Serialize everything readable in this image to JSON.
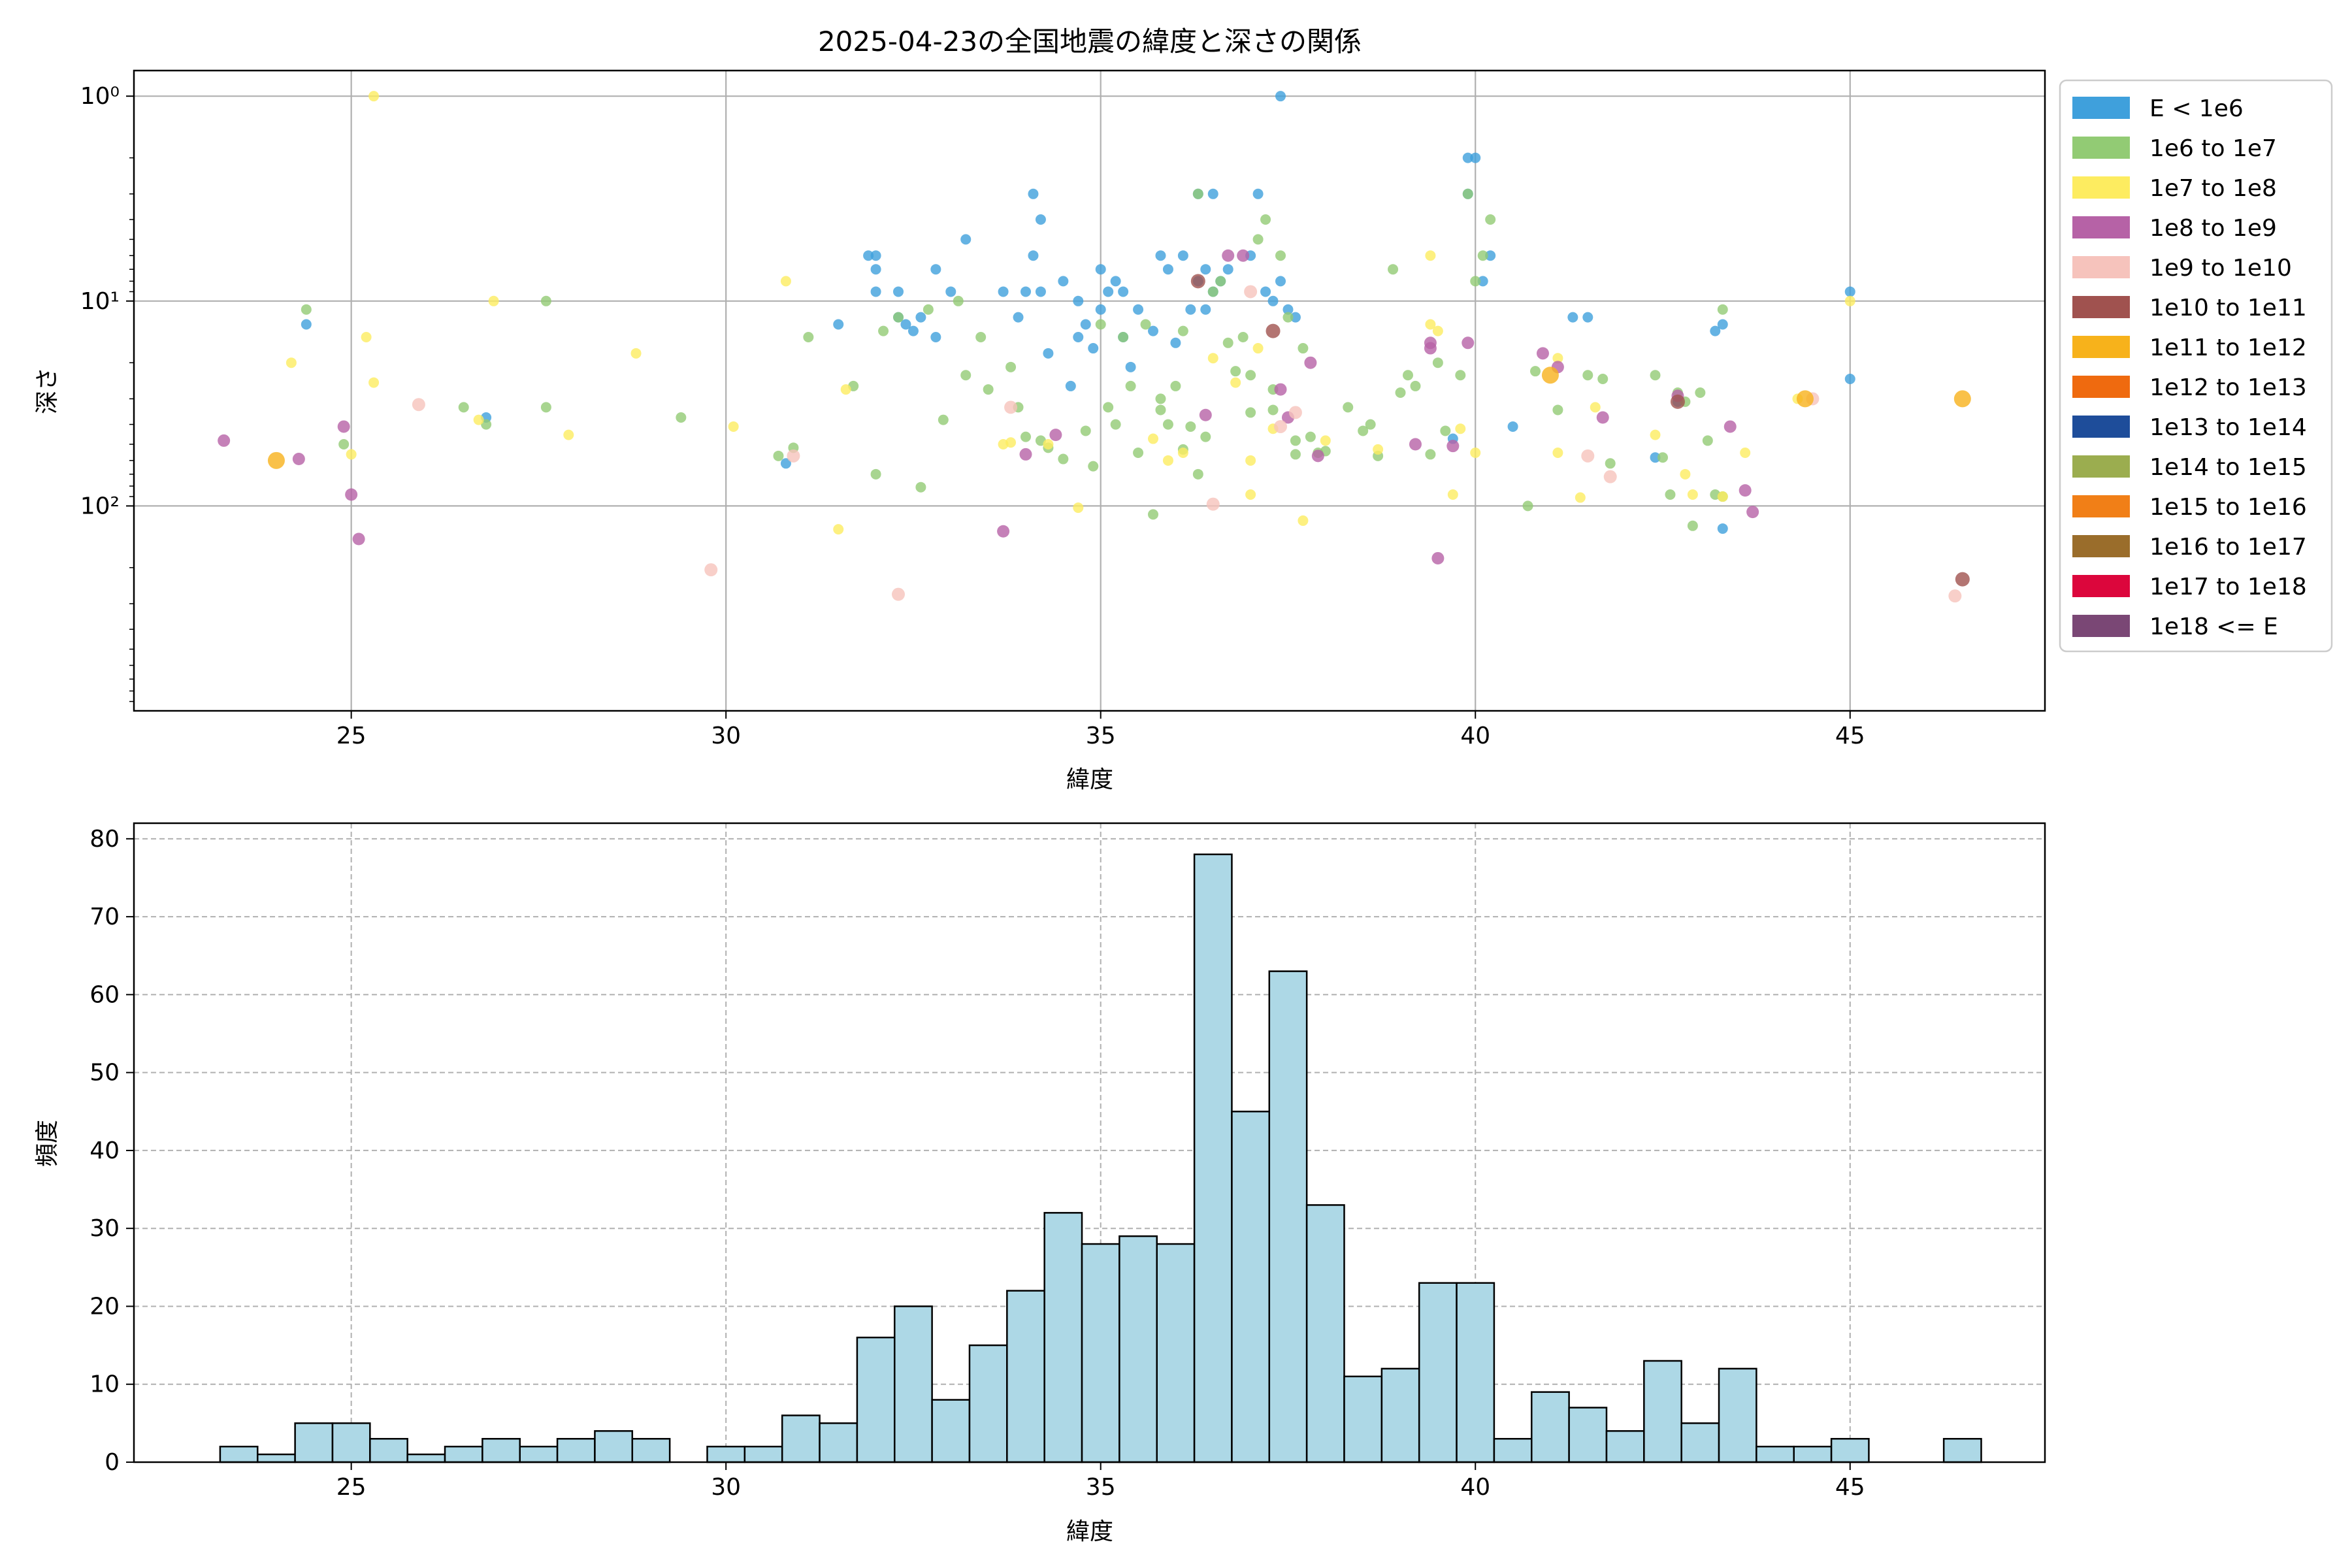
{
  "chart_data": [
    {
      "type": "scatter",
      "title": "2025-04-23の全国地震の緯度と深さの関係",
      "xlabel": "緯度",
      "ylabel": "深さ",
      "xlim": [
        22.1,
        47.6
      ],
      "ylim": [
        1000,
        0.75
      ],
      "y_scale": "log",
      "y_inverted": true,
      "grid": true,
      "x_ticks": [
        25,
        30,
        35,
        40,
        45
      ],
      "y_ticks": [
        {
          "value": 1,
          "label": "10⁰"
        },
        {
          "value": 10,
          "label": "10¹"
        },
        {
          "value": 100,
          "label": "10²"
        }
      ],
      "legend_position": "outside-right",
      "legend": [
        {
          "label": "E < 1e6",
          "color": "#3fa0dc"
        },
        {
          "label": "1e6 to 1e7",
          "color": "#92cb74"
        },
        {
          "label": "1e7 to 1e8",
          "color": "#fdec60"
        },
        {
          "label": "1e8 to 1e9",
          "color": "#b662a6"
        },
        {
          "label": "1e9 to 1e10",
          "color": "#f6c3bc"
        },
        {
          "label": "1e10 to 1e11",
          "color": "#a0524f"
        },
        {
          "label": "1e11 to 1e12",
          "color": "#f7b21b"
        },
        {
          "label": "1e12 to 1e13",
          "color": "#ef6a0f"
        },
        {
          "label": "1e13 to 1e14",
          "color": "#1e4d9a"
        },
        {
          "label": "1e14 to 1e15",
          "color": "#9bad4f"
        },
        {
          "label": "1e15 to 1e16",
          "color": "#f17f17"
        },
        {
          "label": "1e16 to 1e17",
          "color": "#9a6d2b"
        },
        {
          "label": "1e17 to 1e18",
          "color": "#dc063c"
        },
        {
          "label": "1e18 <= E",
          "color": "#7a4775"
        }
      ],
      "series": [
        {
          "name": "E < 1e6",
          "x": [
            24.4,
            26.8,
            30.8,
            31.5,
            31.9,
            32.0,
            32.0,
            32.0,
            32.3,
            32.3,
            32.4,
            32.5,
            32.6,
            32.8,
            32.8,
            33.0,
            33.2,
            33.7,
            33.9,
            34.0,
            34.1,
            34.1,
            34.2,
            34.2,
            34.3,
            34.5,
            34.6,
            34.7,
            34.7,
            34.8,
            34.9,
            35.0,
            35.0,
            35.1,
            35.2,
            35.3,
            35.3,
            35.4,
            35.5,
            35.7,
            35.8,
            35.9,
            36.0,
            36.1,
            36.2,
            36.3,
            36.3,
            36.4,
            36.4,
            36.5,
            36.5,
            36.6,
            36.7,
            37.0,
            37.1,
            37.2,
            37.3,
            37.4,
            37.4,
            37.5,
            37.6,
            39.7,
            39.9,
            39.9,
            40.0,
            40.1,
            40.2,
            40.5,
            41.3,
            41.5,
            42.4,
            42.7,
            43.2,
            43.3,
            43.3,
            45.0,
            45.0
          ],
          "y": [
            13,
            37,
            62,
            13,
            6,
            6,
            7,
            9,
            12,
            9,
            13,
            14,
            12,
            15,
            7,
            9,
            5,
            9,
            12,
            9,
            6,
            3,
            4,
            9,
            18,
            8,
            26,
            15,
            10,
            13,
            17,
            11,
            7,
            9,
            8,
            15,
            9,
            21,
            11,
            14,
            6,
            7,
            16,
            6,
            11,
            3,
            8,
            7,
            11,
            3,
            9,
            8,
            7,
            6,
            3,
            9,
            10,
            1,
            8,
            11,
            12,
            47,
            2,
            3,
            2,
            8,
            6,
            41,
            12,
            12,
            58,
            31,
            14,
            13,
            129,
            24,
            9
          ]
        },
        {
          "name": "1e6 to 1e7",
          "x": [
            24.4,
            24.9,
            26.5,
            26.8,
            27.6,
            27.6,
            29.4,
            30.7,
            30.9,
            31.1,
            31.7,
            32.0,
            32.1,
            32.3,
            32.6,
            32.7,
            32.9,
            33.1,
            33.2,
            33.4,
            33.5,
            33.8,
            33.9,
            34.0,
            34.2,
            34.3,
            34.5,
            34.8,
            34.9,
            35.0,
            35.1,
            35.2,
            35.3,
            35.4,
            35.5,
            35.6,
            35.7,
            35.8,
            35.8,
            35.9,
            36.0,
            36.1,
            36.1,
            36.2,
            36.3,
            36.3,
            36.4,
            36.5,
            36.6,
            36.7,
            36.8,
            36.9,
            37.0,
            37.0,
            37.1,
            37.2,
            37.3,
            37.3,
            37.4,
            37.5,
            37.6,
            37.6,
            37.7,
            37.8,
            37.9,
            38.0,
            38.3,
            38.5,
            38.6,
            38.7,
            38.9,
            39.0,
            39.1,
            39.2,
            39.4,
            39.5,
            39.6,
            39.8,
            39.9,
            40.0,
            40.1,
            40.2,
            40.7,
            40.8,
            41.1,
            41.5,
            41.7,
            41.8,
            42.4,
            42.5,
            42.6,
            42.7,
            42.8,
            42.9,
            43.0,
            43.1,
            43.2,
            43.3,
            43.3
          ],
          "y": [
            11,
            50,
            33,
            40,
            10,
            33,
            37,
            57,
            52,
            15,
            26,
            70,
            14,
            12,
            81,
            11,
            38,
            10,
            23,
            15,
            27,
            21,
            33,
            46,
            48,
            52,
            59,
            43,
            64,
            13,
            33,
            40,
            15,
            26,
            55,
            13,
            110,
            30,
            34,
            40,
            26,
            14,
            53,
            41,
            70,
            3,
            46,
            9,
            8,
            16,
            22,
            15,
            23,
            35,
            5,
            4,
            34,
            27,
            6,
            12,
            48,
            56,
            17,
            46,
            55,
            54,
            33,
            43,
            40,
            57,
            7,
            28,
            23,
            26,
            56,
            20,
            43,
            23,
            3,
            8,
            6,
            4,
            100,
            22,
            34,
            23,
            24,
            62,
            23,
            58,
            88,
            28,
            31,
            125,
            28,
            48,
            88,
            11,
            90
          ]
        },
        {
          "name": "1e7 to 1e8",
          "x": [
            24.2,
            25.0,
            25.2,
            25.3,
            25.3,
            26.7,
            26.9,
            27.9,
            28.8,
            30.1,
            30.8,
            31.5,
            31.6,
            33.7,
            33.8,
            34.3,
            34.7,
            35.7,
            35.9,
            36.1,
            36.5,
            36.8,
            37.0,
            37.0,
            37.1,
            37.3,
            37.7,
            38.0,
            38.7,
            39.4,
            39.4,
            39.5,
            39.7,
            39.8,
            40.0,
            41.1,
            41.1,
            41.4,
            41.6,
            42.4,
            42.8,
            42.9,
            43.3,
            43.6,
            44.3,
            45.0
          ],
          "y": [
            20,
            56,
            15,
            25,
            1,
            38,
            10,
            45,
            18,
            41,
            8,
            130,
            27,
            50,
            49,
            50,
            102,
            47,
            60,
            55,
            19,
            25,
            60,
            88,
            17,
            42,
            118,
            48,
            53,
            13,
            6,
            14,
            88,
            42,
            55,
            55,
            19,
            91,
            33,
            45,
            70,
            88,
            90,
            55,
            30,
            10
          ]
        },
        {
          "name": "1e8 to 1e9",
          "x": [
            23.3,
            24.3,
            24.9,
            25.0,
            25.1,
            33.7,
            34.0,
            34.4,
            36.4,
            36.7,
            36.9,
            37.4,
            37.5,
            37.8,
            37.9,
            39.2,
            39.4,
            39.4,
            39.5,
            39.7,
            39.9,
            40.9,
            41.1,
            41.7,
            42.7,
            43.4,
            43.6,
            43.7
          ],
          "y": [
            48,
            59,
            41,
            88,
            145,
            133,
            56,
            45,
            36,
            6,
            6,
            27,
            37,
            20,
            57,
            50,
            16,
            17,
            180,
            51,
            16,
            18,
            21,
            37,
            29,
            41,
            84,
            107
          ]
        },
        {
          "name": "1e9 to 1e10",
          "x": [
            25.9,
            29.8,
            30.9,
            32.3,
            33.8,
            36.5,
            37.0,
            37.4,
            37.6,
            41.5,
            41.8,
            44.5,
            46.4
          ],
          "y": [
            32,
            205,
            57,
            270,
            33,
            98,
            9,
            41,
            35,
            57,
            72,
            30,
            275
          ]
        },
        {
          "name": "1e10 to 1e11",
          "x": [
            36.3,
            37.3,
            42.7,
            46.5
          ],
          "y": [
            8,
            14,
            31,
            228
          ]
        },
        {
          "name": "1e11 to 1e12",
          "x": [
            24.0,
            41.0,
            44.4,
            46.5
          ],
          "y": [
            60,
            23,
            30,
            30
          ]
        }
      ]
    },
    {
      "type": "bar",
      "title": "",
      "xlabel": "緯度",
      "ylabel": "頻度",
      "xlim": [
        22.1,
        47.6
      ],
      "ylim": [
        0,
        82
      ],
      "grid": true,
      "grid_style": "dashed",
      "x_ticks": [
        25,
        30,
        35,
        40,
        45
      ],
      "y_ticks": [
        0,
        10,
        20,
        30,
        40,
        50,
        60,
        70,
        80
      ],
      "bar_color": "#add8e6",
      "edge_color": "#000000",
      "bin_start": 23.25,
      "bin_width": 0.5,
      "values": [
        2,
        1,
        5,
        5,
        3,
        1,
        2,
        3,
        2,
        3,
        4,
        3,
        0,
        2,
        2,
        6,
        5,
        16,
        20,
        8,
        15,
        22,
        32,
        28,
        29,
        28,
        78,
        45,
        63,
        33,
        11,
        12,
        23,
        23,
        3,
        9,
        7,
        4,
        13,
        5,
        12,
        2,
        2,
        3,
        0,
        0,
        3
      ]
    }
  ]
}
